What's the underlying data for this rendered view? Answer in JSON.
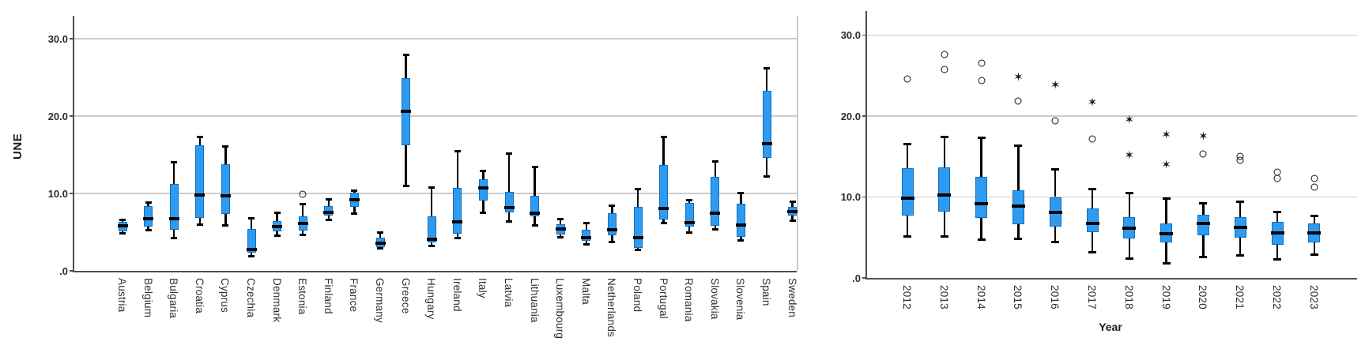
{
  "figure": {
    "y_axis_title": "UNE",
    "x_axis_title_right": "Year"
  },
  "colors": {
    "box_fill": "#2E9BF0",
    "box_border": "#0F6FC0",
    "whisker": "#000000",
    "median": "#000000",
    "gridline": "#cbcbcb",
    "axis": "#4f4f4f",
    "text": "#2d2d2d"
  },
  "chart_data": [
    {
      "type": "boxplot",
      "title": "",
      "xlabel": "",
      "ylabel": "UNE",
      "ylim": [
        0,
        33
      ],
      "grid": "horizontal",
      "legend": null,
      "ytick_values": [
        0,
        10,
        20,
        30
      ],
      "ytick_labels": [
        ".0",
        "10.0",
        "20.0",
        "30.0"
      ],
      "categories": [
        "Austria",
        "Belgium",
        "Bulgaria",
        "Croatia",
        "Cyprus",
        "Czechia",
        "Denmark",
        "Estonia",
        "Finland",
        "France",
        "Germany",
        "Greece",
        "Hungary",
        "Ireland",
        "Italy",
        "Latvia",
        "Lithuania",
        "Luxembourg",
        "Malta",
        "Netherlands",
        "Poland",
        "Portugal",
        "Romania",
        "Slovakia",
        "Slovenia",
        "Spain",
        "Sweden"
      ],
      "boxes": [
        {
          "label": "Austria",
          "min": 4.8,
          "q1": 5.1,
          "median": 5.8,
          "q3": 6.3,
          "max": 6.6,
          "outliers": []
        },
        {
          "label": "Belgium",
          "min": 5.3,
          "q1": 5.7,
          "median": 6.7,
          "q3": 8.4,
          "max": 8.8,
          "outliers": []
        },
        {
          "label": "Bulgaria",
          "min": 4.2,
          "q1": 5.3,
          "median": 6.7,
          "q3": 11.2,
          "max": 14.0,
          "outliers": []
        },
        {
          "label": "Croatia",
          "min": 6.0,
          "q1": 6.8,
          "median": 9.8,
          "q3": 16.2,
          "max": 17.3,
          "outliers": []
        },
        {
          "label": "Cyprus",
          "min": 5.9,
          "q1": 7.3,
          "median": 9.7,
          "q3": 13.8,
          "max": 16.1,
          "outliers": []
        },
        {
          "label": "Czechia",
          "min": 1.9,
          "q1": 2.3,
          "median": 2.8,
          "q3": 5.4,
          "max": 6.8,
          "outliers": []
        },
        {
          "label": "Denmark",
          "min": 4.5,
          "q1": 5.1,
          "median": 5.7,
          "q3": 6.4,
          "max": 7.5,
          "outliers": []
        },
        {
          "label": "Estonia",
          "min": 4.6,
          "q1": 5.2,
          "median": 6.1,
          "q3": 7.0,
          "max": 8.6,
          "outliers": [
            {
              "value": 9.9,
              "marker": "circle"
            }
          ]
        },
        {
          "label": "Finland",
          "min": 6.6,
          "q1": 7.1,
          "median": 7.6,
          "q3": 8.4,
          "max": 9.2,
          "outliers": []
        },
        {
          "label": "France",
          "min": 7.4,
          "q1": 8.3,
          "median": 9.2,
          "q3": 10.1,
          "max": 10.4,
          "outliers": []
        },
        {
          "label": "Germany",
          "min": 2.9,
          "q1": 3.1,
          "median": 3.6,
          "q3": 4.3,
          "max": 4.9,
          "outliers": []
        },
        {
          "label": "Greece",
          "min": 11.0,
          "q1": 16.2,
          "median": 20.6,
          "q3": 24.9,
          "max": 27.9,
          "outliers": []
        },
        {
          "label": "Hungary",
          "min": 3.2,
          "q1": 3.7,
          "median": 4.1,
          "q3": 7.0,
          "max": 10.8,
          "outliers": []
        },
        {
          "label": "Ireland",
          "min": 4.2,
          "q1": 4.8,
          "median": 6.3,
          "q3": 10.7,
          "max": 15.5,
          "outliers": []
        },
        {
          "label": "Italy",
          "min": 7.5,
          "q1": 9.1,
          "median": 10.7,
          "q3": 11.8,
          "max": 12.9,
          "outliers": []
        },
        {
          "label": "Latvia",
          "min": 6.4,
          "q1": 7.6,
          "median": 8.2,
          "q3": 10.2,
          "max": 15.2,
          "outliers": []
        },
        {
          "label": "Lithuania",
          "min": 5.9,
          "q1": 7.0,
          "median": 7.4,
          "q3": 9.7,
          "max": 13.4,
          "outliers": []
        },
        {
          "label": "Luxembourg",
          "min": 4.3,
          "q1": 4.7,
          "median": 5.4,
          "q3": 6.0,
          "max": 6.7,
          "outliers": []
        },
        {
          "label": "Malta",
          "min": 3.4,
          "q1": 3.9,
          "median": 4.3,
          "q3": 5.3,
          "max": 6.2,
          "outliers": []
        },
        {
          "label": "Netherlands",
          "min": 3.7,
          "q1": 4.6,
          "median": 5.3,
          "q3": 7.4,
          "max": 8.4,
          "outliers": []
        },
        {
          "label": "Poland",
          "min": 2.7,
          "q1": 3.0,
          "median": 4.3,
          "q3": 8.3,
          "max": 10.6,
          "outliers": []
        },
        {
          "label": "Portugal",
          "min": 6.2,
          "q1": 6.6,
          "median": 8.1,
          "q3": 13.7,
          "max": 17.3,
          "outliers": []
        },
        {
          "label": "Romania",
          "min": 4.9,
          "q1": 5.7,
          "median": 6.2,
          "q3": 8.8,
          "max": 9.1,
          "outliers": []
        },
        {
          "label": "Slovakia",
          "min": 5.4,
          "q1": 5.8,
          "median": 7.4,
          "q3": 12.1,
          "max": 14.1,
          "outliers": []
        },
        {
          "label": "Slovenia",
          "min": 3.9,
          "q1": 4.4,
          "median": 5.9,
          "q3": 8.7,
          "max": 10.1,
          "outliers": []
        },
        {
          "label": "Spain",
          "min": 12.2,
          "q1": 14.6,
          "median": 16.4,
          "q3": 23.3,
          "max": 26.2,
          "outliers": []
        },
        {
          "label": "Sweden",
          "min": 6.5,
          "q1": 7.1,
          "median": 7.7,
          "q3": 8.3,
          "max": 8.9,
          "outliers": []
        }
      ]
    },
    {
      "type": "boxplot",
      "title": "",
      "xlabel": "Year",
      "ylabel": "",
      "ylim": [
        0,
        33
      ],
      "grid": "horizontal",
      "legend": null,
      "ytick_values": [
        0,
        10,
        20,
        30
      ],
      "ytick_labels": [
        ".0",
        "10.0",
        "20.0",
        "30.0"
      ],
      "categories": [
        "2012",
        "2013",
        "2014",
        "2015",
        "2016",
        "2017",
        "2018",
        "2019",
        "2020",
        "2021",
        "2022",
        "2023"
      ],
      "boxes": [
        {
          "label": "2012",
          "min": 5.1,
          "q1": 7.7,
          "median": 9.9,
          "q3": 13.6,
          "max": 16.5,
          "outliers": [
            {
              "value": 24.6,
              "marker": "circle"
            }
          ]
        },
        {
          "label": "2013",
          "min": 5.1,
          "q1": 8.2,
          "median": 10.2,
          "q3": 13.7,
          "max": 17.4,
          "outliers": [
            {
              "value": 27.6,
              "marker": "circle"
            },
            {
              "value": 25.8,
              "marker": "circle"
            }
          ]
        },
        {
          "label": "2014",
          "min": 4.7,
          "q1": 7.4,
          "median": 9.2,
          "q3": 12.5,
          "max": 17.3,
          "outliers": [
            {
              "value": 26.5,
              "marker": "circle"
            },
            {
              "value": 24.4,
              "marker": "circle"
            }
          ]
        },
        {
          "label": "2015",
          "min": 4.8,
          "q1": 6.6,
          "median": 8.9,
          "q3": 10.8,
          "max": 16.3,
          "outliers": [
            {
              "value": 24.8,
              "marker": "star"
            },
            {
              "value": 21.9,
              "marker": "circle"
            }
          ]
        },
        {
          "label": "2016",
          "min": 4.4,
          "q1": 6.3,
          "median": 8.1,
          "q3": 10.0,
          "max": 13.4,
          "outliers": [
            {
              "value": 23.8,
              "marker": "star"
            },
            {
              "value": 19.4,
              "marker": "circle"
            }
          ]
        },
        {
          "label": "2017",
          "min": 3.2,
          "q1": 5.7,
          "median": 6.7,
          "q3": 8.6,
          "max": 11.0,
          "outliers": [
            {
              "value": 21.7,
              "marker": "star"
            },
            {
              "value": 17.2,
              "marker": "circle"
            }
          ]
        },
        {
          "label": "2018",
          "min": 2.4,
          "q1": 4.9,
          "median": 6.1,
          "q3": 7.5,
          "max": 10.5,
          "outliers": [
            {
              "value": 19.5,
              "marker": "star"
            },
            {
              "value": 15.1,
              "marker": "star"
            }
          ]
        },
        {
          "label": "2019",
          "min": 1.8,
          "q1": 4.4,
          "median": 5.5,
          "q3": 6.7,
          "max": 9.8,
          "outliers": [
            {
              "value": 17.7,
              "marker": "star"
            },
            {
              "value": 14.0,
              "marker": "star"
            }
          ]
        },
        {
          "label": "2020",
          "min": 2.6,
          "q1": 5.3,
          "median": 6.7,
          "q3": 7.8,
          "max": 9.2,
          "outliers": [
            {
              "value": 17.5,
              "marker": "star"
            },
            {
              "value": 15.3,
              "marker": "circle"
            }
          ]
        },
        {
          "label": "2021",
          "min": 2.8,
          "q1": 5.0,
          "median": 6.2,
          "q3": 7.5,
          "max": 9.4,
          "outliers": [
            {
              "value": 15.0,
              "marker": "circle"
            },
            {
              "value": 14.5,
              "marker": "circle"
            }
          ]
        },
        {
          "label": "2022",
          "min": 2.3,
          "q1": 4.1,
          "median": 5.6,
          "q3": 6.9,
          "max": 8.1,
          "outliers": [
            {
              "value": 13.1,
              "marker": "circle"
            },
            {
              "value": 12.3,
              "marker": "circle"
            }
          ]
        },
        {
          "label": "2023",
          "min": 2.9,
          "q1": 4.4,
          "median": 5.6,
          "q3": 6.7,
          "max": 7.7,
          "outliers": [
            {
              "value": 12.3,
              "marker": "circle"
            },
            {
              "value": 11.2,
              "marker": "circle"
            }
          ]
        }
      ]
    }
  ]
}
